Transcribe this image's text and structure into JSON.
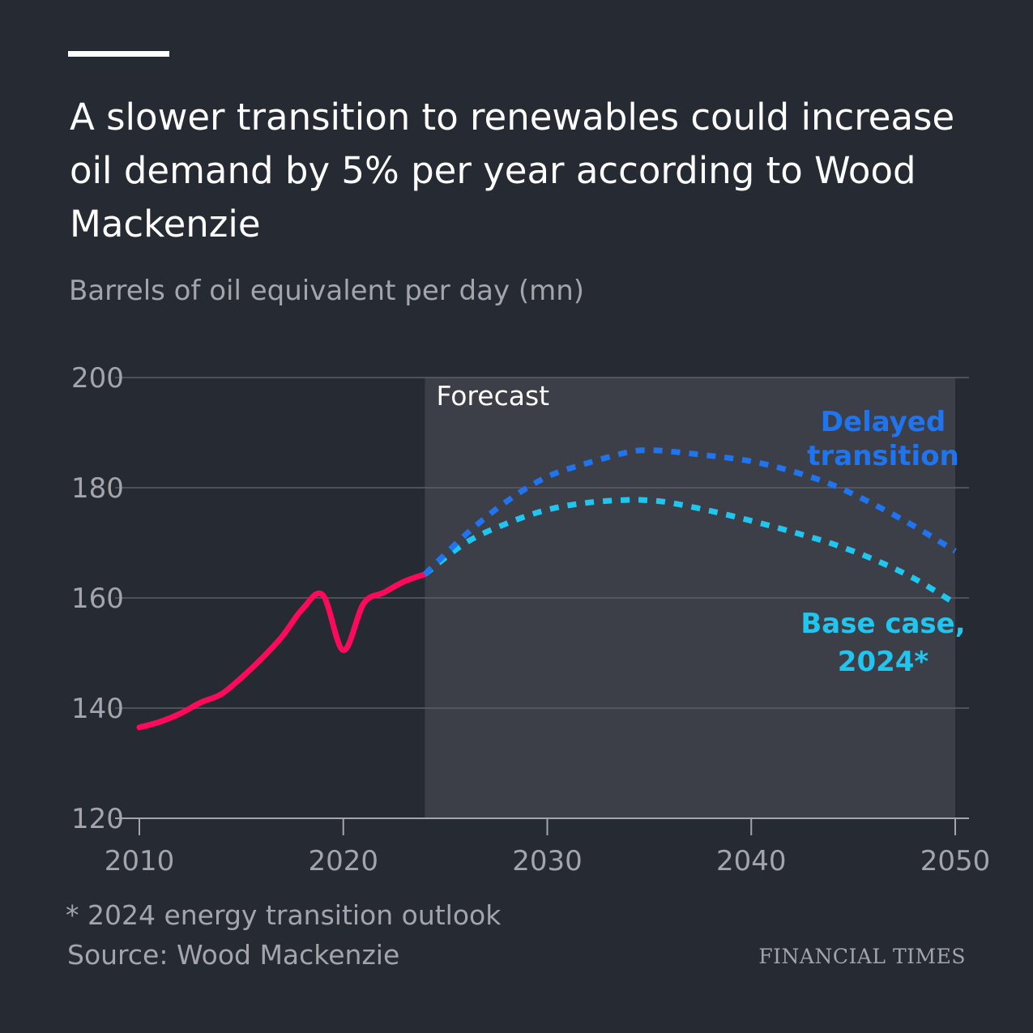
{
  "title": "A slower transition to renewables could increase oil demand by 5% per year according to Wood Mackenzie",
  "subtitle": "Barrels of oil equivalent per day (mn)",
  "footnote": "* 2024 energy transition outlook",
  "source": "Source: Wood Mackenzie",
  "brand": "FINANCIAL TIMES",
  "colors": {
    "background": "#262a33",
    "forecast_shade": "#3c3f48",
    "historical": "#ff0a5a",
    "delayed": "#1f75f0",
    "base": "#20c6ef"
  },
  "chart_data": {
    "type": "line",
    "xlabel": "",
    "ylabel": "Barrels of oil equivalent per day (mn)",
    "xlim": [
      2010,
      2050
    ],
    "ylim": [
      120,
      200
    ],
    "x_ticks": [
      "2010",
      "2020",
      "2030",
      "2040",
      "2050"
    ],
    "y_ticks": [
      "120",
      "140",
      "160",
      "180",
      "200"
    ],
    "grid": "horizontal",
    "forecast_region": {
      "label": "Forecast",
      "from": 2024,
      "to": 2050
    },
    "series": [
      {
        "style": "solid",
        "color": "#ff0a5a",
        "x": [
          2010,
          2011,
          2012,
          2013,
          2014,
          2015,
          2016,
          2017,
          2018,
          2019,
          2020,
          2021,
          2022,
          2023,
          2024
        ],
        "y": [
          136.5,
          137.5,
          139.0,
          141.0,
          142.5,
          145.5,
          149.0,
          153.0,
          158.0,
          160.5,
          150.5,
          159.0,
          161.0,
          163.0,
          164.3
        ]
      },
      {
        "name": "Delayed transition",
        "style": "dotted",
        "color": "#1f75f0",
        "x": [
          2024,
          2026,
          2028,
          2030,
          2032,
          2034,
          2035,
          2036,
          2038,
          2040,
          2042,
          2044,
          2046,
          2048,
          2050
        ],
        "y": [
          164.3,
          171.5,
          177.5,
          182.0,
          184.5,
          186.5,
          186.8,
          186.6,
          185.8,
          184.8,
          183.0,
          180.5,
          177.0,
          173.0,
          168.5
        ]
      },
      {
        "name": "Base case, 2024*",
        "style": "dotted",
        "color": "#20c6ef",
        "x": [
          2024,
          2026,
          2028,
          2030,
          2032,
          2034,
          2035,
          2036,
          2038,
          2040,
          2042,
          2044,
          2046,
          2048,
          2050
        ],
        "y": [
          164.3,
          170.0,
          173.5,
          176.0,
          177.3,
          177.8,
          177.7,
          177.3,
          175.8,
          174.0,
          172.0,
          169.8,
          167.0,
          163.5,
          159.0
        ]
      }
    ],
    "annotations": [
      {
        "text": [
          "Delayed",
          "transition"
        ],
        "color": "#1f75f0"
      },
      {
        "text": [
          "Base case,",
          "2024*"
        ],
        "color": "#20c6ef"
      }
    ]
  }
}
